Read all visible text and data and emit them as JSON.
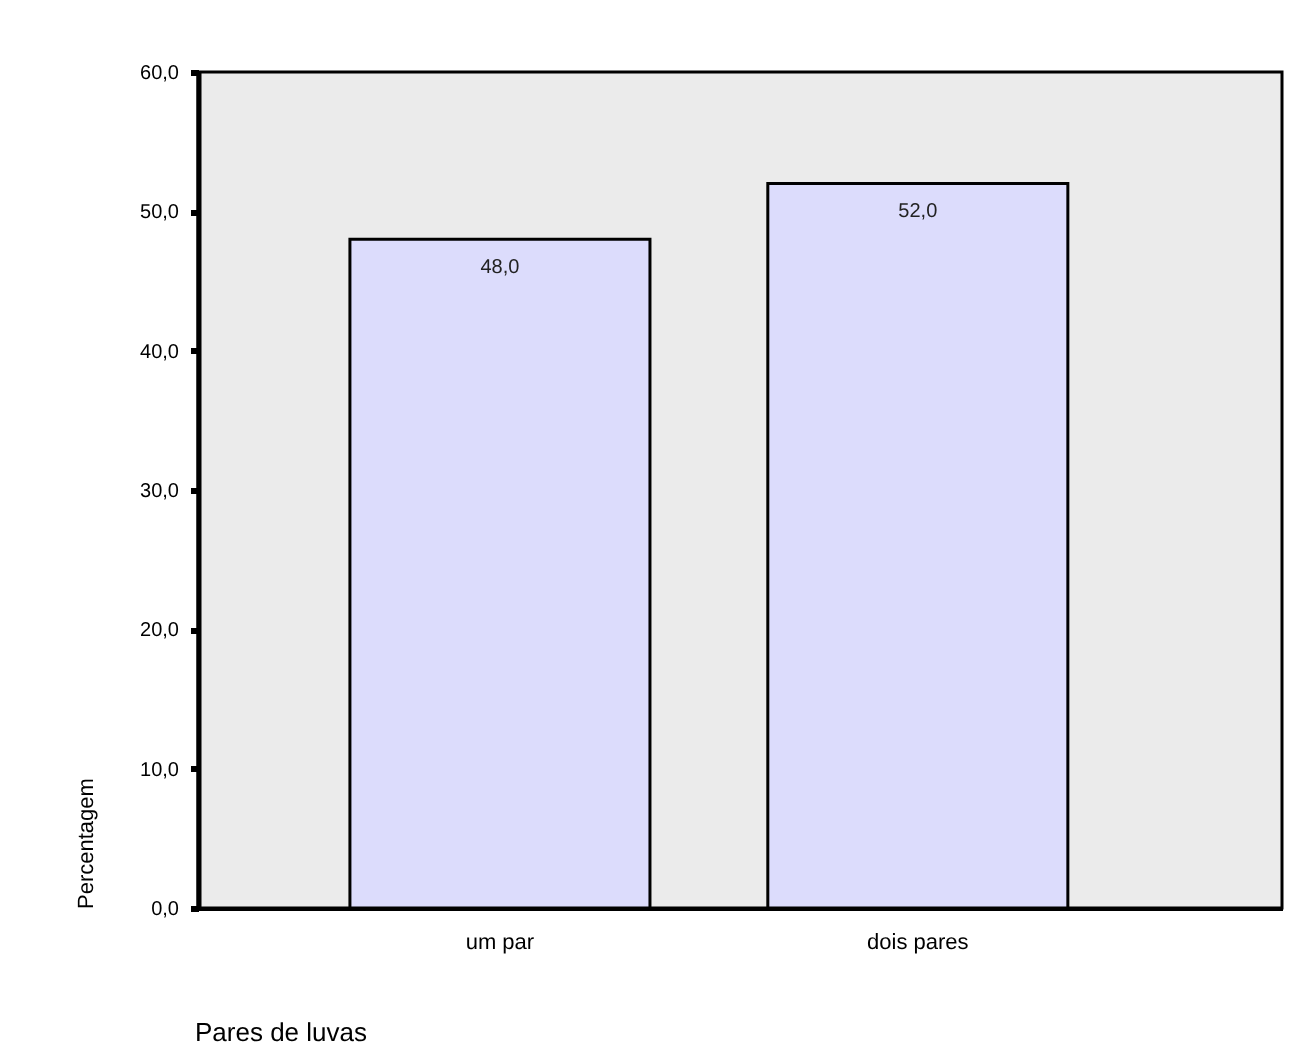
{
  "chart_data": {
    "type": "bar",
    "xlabel": "Pares de luvas",
    "ylabel": "Percentagem",
    "categories": [
      "um par",
      "dois pares"
    ],
    "values": [
      48.0,
      52.0
    ],
    "color": "#dcdcfc",
    "value_labels": [
      "48,0",
      "52,0"
    ],
    "ylim": [
      0,
      60
    ],
    "yticks": [
      {
        "value": 0,
        "label": "0,0"
      },
      {
        "value": 10,
        "label": "10,0"
      },
      {
        "value": 20,
        "label": "20,0"
      },
      {
        "value": 30,
        "label": "30,0"
      },
      {
        "value": 40,
        "label": "40,0"
      },
      {
        "value": 50,
        "label": "50,0"
      },
      {
        "value": 60,
        "label": "60,0"
      }
    ],
    "grid": false
  }
}
